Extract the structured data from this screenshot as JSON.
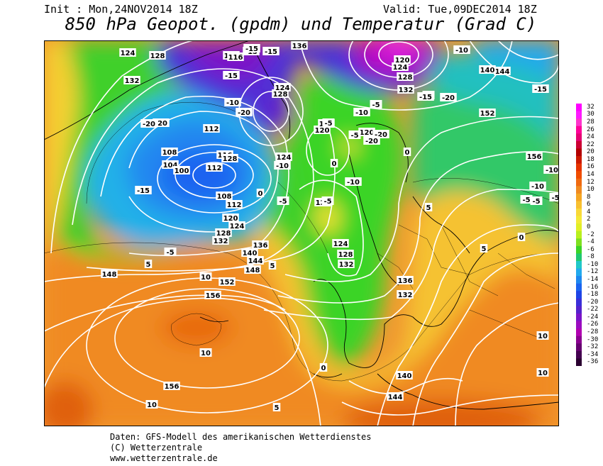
{
  "header": {
    "init": "Init : Mon,24NOV2014 18Z",
    "valid": "Valid: Tue,09DEC2014 18Z",
    "title": "850 hPa Geopot. (gpdm) und Temperatur (Grad C)"
  },
  "legend": {
    "values": [
      "32",
      "30",
      "28",
      "26",
      "24",
      "22",
      "20",
      "18",
      "16",
      "14",
      "12",
      "10",
      "8",
      "6",
      "4",
      "2",
      "0",
      "-2",
      "-4",
      "-6",
      "-8",
      "-10",
      "-12",
      "-14",
      "-16",
      "-18",
      "-20",
      "-22",
      "-24",
      "-26",
      "-28",
      "-30",
      "-32",
      "-34",
      "-36"
    ],
    "colors": [
      "#ff00ff",
      "#ff1aff",
      "#ff33cc",
      "#ff0099",
      "#e60073",
      "#cc0033",
      "#b30000",
      "#cc1a00",
      "#e63300",
      "#f04d00",
      "#f06a10",
      "#f08a20",
      "#f5a623",
      "#f8c030",
      "#f9d838",
      "#f4e936",
      "#e1ef26",
      "#b8f01e",
      "#7ee020",
      "#3ad428",
      "#20c870",
      "#20c8c8",
      "#22aaee",
      "#1e88f0",
      "#1a64f0",
      "#1e44e6",
      "#3a2fd8",
      "#5522cc",
      "#7a14c8",
      "#9a0cc0",
      "#b000b0",
      "#8a0090",
      "#660070",
      "#440050",
      "#2a0030"
    ]
  },
  "credits": {
    "line1": "Daten: GFS-Modell des amerikanischen Wetterdienstes",
    "line2": "(C) Wetterzentrale",
    "line3": "www.wetterzentrale.de"
  },
  "contour_labels": {
    "geopotential": [
      "124",
      "128",
      "132",
      "116",
      "112",
      "108",
      "104",
      "100",
      "108",
      "112",
      "120",
      "124",
      "128",
      "132",
      "136",
      "140",
      "144",
      "148",
      "152",
      "156",
      "156",
      "120",
      "124",
      "128",
      "132",
      "136",
      "140",
      "144",
      "132",
      "128",
      "124",
      "116",
      "120",
      "136",
      "144",
      "140",
      "152",
      "156",
      "112",
      "116",
      "120",
      "124",
      "128",
      "132",
      "124",
      "128",
      "120",
      "136",
      "148"
    ],
    "temperature": [
      "-15",
      "-15",
      "-15",
      "-15",
      "-10",
      "-20",
      "-5",
      "-20",
      "-20",
      "-15",
      "-10",
      "-5",
      "0",
      "-5",
      "-10",
      "-5",
      "5",
      "10",
      "5",
      "10",
      "10",
      "5",
      "10",
      "-5",
      "-10",
      "-15",
      "-20",
      "-5",
      "-10",
      "-5",
      "5",
      "0",
      "0",
      "0",
      "-5",
      "-5",
      "-10",
      "-5",
      "0",
      "5",
      "10",
      "-15",
      "-20",
      "-20",
      "-10"
    ]
  }
}
